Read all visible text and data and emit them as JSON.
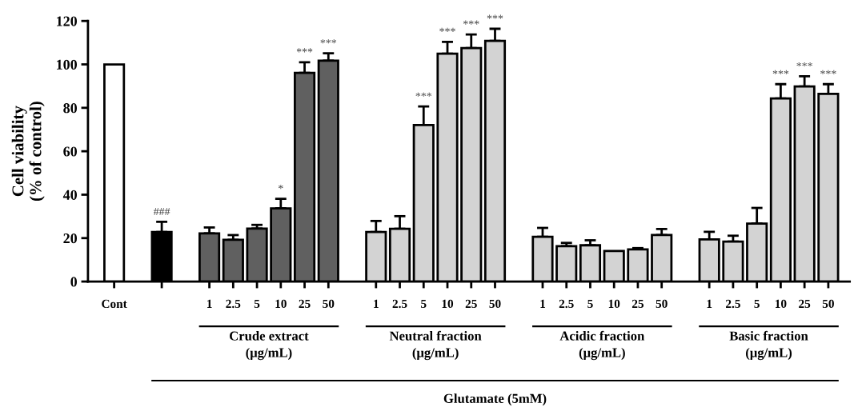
{
  "chart_data": {
    "type": "bar",
    "ylabel": "Cell viability\n(% of control)",
    "categories": [
      "Cont",
      null,
      null,
      null,
      "1",
      "2.5",
      "5",
      "10",
      "25",
      "50",
      null,
      "1",
      "2.5",
      "5",
      "10",
      "25",
      "50",
      null,
      "1",
      "2.5",
      "5",
      "10",
      "25",
      "50",
      null,
      "1",
      "2.5",
      "5",
      "10",
      "25",
      "50"
    ],
    "values": [
      100,
      null,
      22.8,
      null,
      22.2,
      19.2,
      24.4,
      33.7,
      96.1,
      101.7,
      null,
      22.8,
      24.3,
      72.1,
      104.9,
      107.5,
      110.8,
      null,
      20.6,
      16.3,
      16.7,
      14.1,
      14.8,
      21.4,
      null,
      19.4,
      18.4,
      26.7,
      84.3,
      89.8,
      86.4
    ],
    "errors": [
      null,
      null,
      [
        22.8,
        27.5
      ],
      null,
      [
        22.2,
        24.9
      ],
      [
        19.2,
        21.4
      ],
      [
        24.4,
        26.1
      ],
      [
        33.7,
        38.1
      ],
      [
        96.1,
        101.0
      ],
      [
        101.7,
        105.1
      ],
      null,
      [
        22.8,
        27.9
      ],
      [
        24.3,
        30.1
      ],
      [
        72.1,
        80.6
      ],
      [
        104.9,
        110.4
      ],
      [
        107.5,
        113.8
      ],
      [
        110.8,
        116.4
      ],
      null,
      [
        20.6,
        24.7
      ],
      [
        16.3,
        17.8
      ],
      [
        16.7,
        19.0
      ],
      null,
      [
        14.8,
        15.4
      ],
      [
        21.4,
        24.2
      ],
      null,
      [
        19.4,
        22.9
      ],
      [
        18.4,
        21.1
      ],
      [
        26.7,
        33.9
      ],
      [
        84.3,
        90.9
      ],
      [
        89.8,
        94.5
      ],
      [
        86.4,
        90.9
      ]
    ],
    "colors": [
      "#ffffff",
      null,
      "#000000",
      null,
      "#606060",
      "#606060",
      "#606060",
      "#606060",
      "#606060",
      "#606060",
      null,
      "#d3d3d3",
      "#d3d3d3",
      "#d3d3d3",
      "#d3d3d3",
      "#d3d3d3",
      "#d3d3d3",
      null,
      "#d3d3d3",
      "#d3d3d3",
      "#d3d3d3",
      "#d3d3d3",
      "#d3d3d3",
      "#d3d3d3",
      null,
      "#d3d3d3",
      "#d3d3d3",
      "#d3d3d3",
      "#d3d3d3",
      "#d3d3d3",
      "#d3d3d3"
    ],
    "value_labels": [
      null,
      null,
      "###",
      null,
      null,
      null,
      null,
      "*",
      "***",
      "***",
      null,
      null,
      null,
      "***",
      "***",
      "***",
      "***",
      null,
      null,
      null,
      null,
      null,
      null,
      null,
      null,
      null,
      null,
      null,
      "***",
      "***",
      "***"
    ],
    "annotations": [
      "Crude extract\n(μg/mL)",
      "Neutral fraction\n(μg/mL)",
      "Acidic fraction\n(μg/mL)",
      "Basic fraction\n(μg/mL)",
      "Glutamate (5mM)"
    ],
    "ylim": [
      0,
      120
    ],
    "yticks": [
      0,
      20,
      40,
      60,
      80,
      100,
      120
    ],
    "grid": false,
    "legend": false
  }
}
